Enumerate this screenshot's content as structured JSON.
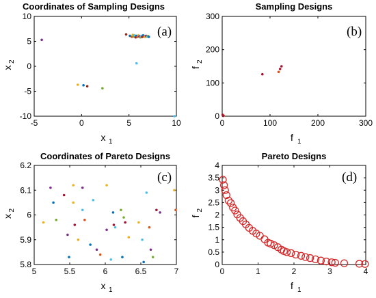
{
  "chart_data": [
    {
      "panel": "(a)",
      "type": "scatter",
      "title": "Coordinates of Sampling Designs",
      "xlabel": "x",
      "xlabel_sub": "1",
      "ylabel": "x",
      "ylabel_sub": "2",
      "xlim": [
        -5,
        10
      ],
      "ylim": [
        -10,
        10
      ],
      "xticks": [
        -5,
        0,
        5,
        10
      ],
      "yticks": [
        -10,
        -5,
        0,
        5,
        10
      ],
      "points": [
        {
          "x": -4.2,
          "y": 5.3,
          "color": "#7e2f8e"
        },
        {
          "x": 4.7,
          "y": 6.4,
          "color": "#8c2a1c"
        },
        {
          "x": 5.1,
          "y": 6.1,
          "color": "#0072bd"
        },
        {
          "x": 5.3,
          "y": 5.9,
          "color": "#d95319"
        },
        {
          "x": 5.4,
          "y": 6.3,
          "color": "#edb120"
        },
        {
          "x": 5.5,
          "y": 6.0,
          "color": "#77ac30"
        },
        {
          "x": 5.6,
          "y": 6.2,
          "color": "#4dbeee"
        },
        {
          "x": 5.7,
          "y": 5.8,
          "color": "#a2142f"
        },
        {
          "x": 5.8,
          "y": 6.1,
          "color": "#0072bd"
        },
        {
          "x": 5.9,
          "y": 5.9,
          "color": "#d95319"
        },
        {
          "x": 6.0,
          "y": 6.2,
          "color": "#edb120"
        },
        {
          "x": 6.1,
          "y": 6.0,
          "color": "#7e2f8e"
        },
        {
          "x": 6.2,
          "y": 5.8,
          "color": "#77ac30"
        },
        {
          "x": 6.3,
          "y": 6.1,
          "color": "#4dbeee"
        },
        {
          "x": 6.4,
          "y": 5.9,
          "color": "#a2142f"
        },
        {
          "x": 6.5,
          "y": 6.2,
          "color": "#0072bd"
        },
        {
          "x": 6.6,
          "y": 6.0,
          "color": "#d95319"
        },
        {
          "x": 6.7,
          "y": 5.85,
          "color": "#edb120"
        },
        {
          "x": 6.8,
          "y": 6.1,
          "color": "#7e2f8e"
        },
        {
          "x": 6.9,
          "y": 5.95,
          "color": "#4dbeee"
        },
        {
          "x": 7.0,
          "y": 6.05,
          "color": "#77ac30"
        },
        {
          "x": 7.1,
          "y": 5.9,
          "color": "#0072bd"
        },
        {
          "x": -0.4,
          "y": -3.7,
          "color": "#edb120"
        },
        {
          "x": 0.2,
          "y": -3.8,
          "color": "#0072bd"
        },
        {
          "x": 0.6,
          "y": -4.0,
          "color": "#8c2a1c"
        },
        {
          "x": 2.2,
          "y": -4.4,
          "color": "#77ac30"
        },
        {
          "x": 5.8,
          "y": 0.6,
          "color": "#4dbeee"
        },
        {
          "x": 9.8,
          "y": -10.0,
          "color": "#4dbeee"
        }
      ]
    },
    {
      "panel": "(b)",
      "type": "scatter",
      "title": "Sampling Designs",
      "xlabel": "f",
      "xlabel_sub": "1",
      "ylabel": "f",
      "ylabel_sub": "2",
      "xlim": [
        0,
        300
      ],
      "ylim": [
        0,
        300
      ],
      "xticks": [
        0,
        100,
        200,
        300
      ],
      "yticks": [
        0,
        100,
        200,
        300
      ],
      "points": [
        {
          "x": 84,
          "y": 126,
          "color": "#a2142f"
        },
        {
          "x": 118,
          "y": 133,
          "color": "#d95319"
        },
        {
          "x": 121,
          "y": 142,
          "color": "#a2142f"
        },
        {
          "x": 124,
          "y": 150,
          "color": "#a2142f"
        },
        {
          "x": 1,
          "y": 4,
          "color": "#a2142f"
        },
        {
          "x": 3,
          "y": 2,
          "color": "#d95319"
        },
        {
          "x": 2,
          "y": 1,
          "color": "#a2142f"
        }
      ]
    },
    {
      "panel": "(c)",
      "type": "scatter",
      "title": "Coordinates of Pareto Designs",
      "xlabel": "x",
      "xlabel_sub": "1",
      "ylabel": "x",
      "ylabel_sub": "2",
      "xlim": [
        5,
        7
      ],
      "ylim": [
        5.8,
        6.2
      ],
      "xticks": [
        5,
        5.5,
        6,
        6.5,
        7
      ],
      "yticks": [
        5.8,
        5.9,
        6,
        6.1,
        6.2
      ],
      "points": [
        {
          "x": 5.13,
          "y": 5.97,
          "color": "#edb120"
        },
        {
          "x": 5.23,
          "y": 6.11,
          "color": "#7e2f8e"
        },
        {
          "x": 5.27,
          "y": 6.05,
          "color": "#0072bd"
        },
        {
          "x": 5.31,
          "y": 5.98,
          "color": "#77ac30"
        },
        {
          "x": 5.42,
          "y": 6.08,
          "color": "#a2142f"
        },
        {
          "x": 5.47,
          "y": 5.92,
          "color": "#7e2f8e"
        },
        {
          "x": 5.49,
          "y": 5.83,
          "color": "#0072bd"
        },
        {
          "x": 5.55,
          "y": 6.12,
          "color": "#edb120"
        },
        {
          "x": 5.55,
          "y": 6.05,
          "color": "#edb120"
        },
        {
          "x": 5.57,
          "y": 5.96,
          "color": "#a2142f"
        },
        {
          "x": 5.62,
          "y": 5.9,
          "color": "#edb120"
        },
        {
          "x": 5.68,
          "y": 6.11,
          "color": "#7e2f8e"
        },
        {
          "x": 5.68,
          "y": 6.02,
          "color": "#4dbeee"
        },
        {
          "x": 5.71,
          "y": 5.98,
          "color": "#d95319"
        },
        {
          "x": 5.79,
          "y": 5.88,
          "color": "#0072bd"
        },
        {
          "x": 5.83,
          "y": 6.06,
          "color": "#4dbeee"
        },
        {
          "x": 5.88,
          "y": 5.86,
          "color": "#7e2f8e"
        },
        {
          "x": 5.93,
          "y": 5.84,
          "color": "#d95319"
        },
        {
          "x": 6.02,
          "y": 6.12,
          "color": "#edb120"
        },
        {
          "x": 6.02,
          "y": 5.94,
          "color": "#7e2f8e"
        },
        {
          "x": 6.08,
          "y": 5.82,
          "color": "#4dbeee"
        },
        {
          "x": 6.11,
          "y": 6.01,
          "color": "#0072bd"
        },
        {
          "x": 6.12,
          "y": 5.96,
          "color": "#a2142f"
        },
        {
          "x": 6.14,
          "y": 5.95,
          "color": "#4dbeee"
        },
        {
          "x": 6.22,
          "y": 6.02,
          "color": "#77ac30"
        },
        {
          "x": 6.24,
          "y": 5.83,
          "color": "#0072bd"
        },
        {
          "x": 6.26,
          "y": 5.99,
          "color": "#77ac30"
        },
        {
          "x": 6.28,
          "y": 5.97,
          "color": "#a2142f"
        },
        {
          "x": 6.33,
          "y": 5.91,
          "color": "#edb120"
        },
        {
          "x": 6.47,
          "y": 5.97,
          "color": "#edb120"
        },
        {
          "x": 6.52,
          "y": 5.9,
          "color": "#4dbeee"
        },
        {
          "x": 6.54,
          "y": 5.81,
          "color": "#0072bd"
        },
        {
          "x": 6.58,
          "y": 6.09,
          "color": "#4dbeee"
        },
        {
          "x": 6.62,
          "y": 5.95,
          "color": "#d95319"
        },
        {
          "x": 6.64,
          "y": 5.86,
          "color": "#7e2f8e"
        },
        {
          "x": 6.67,
          "y": 5.83,
          "color": "#77ac30"
        },
        {
          "x": 6.72,
          "y": 6.02,
          "color": "#a2142f"
        },
        {
          "x": 6.77,
          "y": 6.01,
          "color": "#7e2f8e"
        },
        {
          "x": 6.97,
          "y": 6.1,
          "color": "#edb120"
        },
        {
          "x": 6.99,
          "y": 6.02,
          "color": "#d95319"
        }
      ]
    },
    {
      "panel": "(d)",
      "type": "scatter",
      "title": "Pareto Designs",
      "xlabel": "f",
      "xlabel_sub": "1",
      "ylabel": "f",
      "ylabel_sub": "2",
      "xlim": [
        0,
        4
      ],
      "ylim": [
        0,
        4
      ],
      "xticks": [
        0,
        1,
        2,
        3,
        4
      ],
      "yticks": [
        0,
        0.5,
        1,
        1.5,
        2,
        2.5,
        3,
        3.5,
        4
      ],
      "marker": "open-circle",
      "marker_color": "#d62728",
      "points": [
        {
          "x": 0.02,
          "y": 3.42
        },
        {
          "x": 0.05,
          "y": 3.2
        },
        {
          "x": 0.08,
          "y": 3.0
        },
        {
          "x": 0.12,
          "y": 2.8
        },
        {
          "x": 0.18,
          "y": 2.58
        },
        {
          "x": 0.24,
          "y": 2.48
        },
        {
          "x": 0.3,
          "y": 2.3
        },
        {
          "x": 0.36,
          "y": 2.18
        },
        {
          "x": 0.42,
          "y": 2.02
        },
        {
          "x": 0.5,
          "y": 1.88
        },
        {
          "x": 0.58,
          "y": 1.75
        },
        {
          "x": 0.66,
          "y": 1.62
        },
        {
          "x": 0.75,
          "y": 1.48
        },
        {
          "x": 0.85,
          "y": 1.36
        },
        {
          "x": 0.95,
          "y": 1.25
        },
        {
          "x": 1.05,
          "y": 1.16
        },
        {
          "x": 1.18,
          "y": 1.02
        },
        {
          "x": 1.28,
          "y": 0.88
        },
        {
          "x": 1.35,
          "y": 0.84
        },
        {
          "x": 1.45,
          "y": 0.78
        },
        {
          "x": 1.55,
          "y": 0.7
        },
        {
          "x": 1.65,
          "y": 0.6
        },
        {
          "x": 1.72,
          "y": 0.54
        },
        {
          "x": 1.8,
          "y": 0.5
        },
        {
          "x": 1.92,
          "y": 0.46
        },
        {
          "x": 2.05,
          "y": 0.4
        },
        {
          "x": 2.2,
          "y": 0.35
        },
        {
          "x": 2.32,
          "y": 0.3
        },
        {
          "x": 2.45,
          "y": 0.26
        },
        {
          "x": 2.6,
          "y": 0.21
        },
        {
          "x": 2.75,
          "y": 0.16
        },
        {
          "x": 2.9,
          "y": 0.12
        },
        {
          "x": 3.05,
          "y": 0.09
        },
        {
          "x": 3.15,
          "y": 0.07
        },
        {
          "x": 3.4,
          "y": 0.05
        },
        {
          "x": 3.82,
          "y": 0.03
        },
        {
          "x": 3.98,
          "y": 0.02
        }
      ]
    }
  ]
}
